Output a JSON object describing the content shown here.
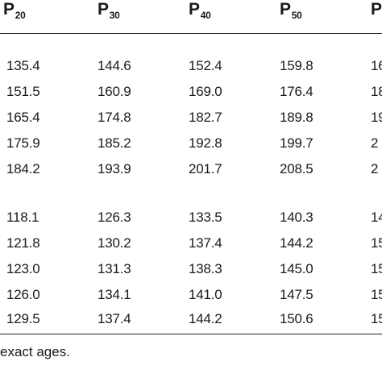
{
  "headers": [
    {
      "letter": "P",
      "sub": "20"
    },
    {
      "letter": "P",
      "sub": "30"
    },
    {
      "letter": "P",
      "sub": "40"
    },
    {
      "letter": "P",
      "sub": "50"
    },
    {
      "letter": "P",
      "sub": ""
    }
  ],
  "group1": [
    [
      "135.4",
      "144.6",
      "152.4",
      "159.8",
      "16"
    ],
    [
      "151.5",
      "160.9",
      "169.0",
      "176.4",
      "18"
    ],
    [
      "165.4",
      "174.8",
      "182.7",
      "189.8",
      "19"
    ],
    [
      "175.9",
      "185.2",
      "192.8",
      "199.7",
      "2"
    ],
    [
      "184.2",
      "193.9",
      "201.7",
      "208.5",
      "2"
    ]
  ],
  "group2": [
    [
      "118.1",
      "126.3",
      "133.5",
      "140.3",
      "14"
    ],
    [
      "121.8",
      "130.2",
      "137.4",
      "144.2",
      "15"
    ],
    [
      "123.0",
      "131.3",
      "138.3",
      "145.0",
      "15"
    ],
    [
      "126.0",
      "134.1",
      "141.0",
      "147.5",
      "15"
    ],
    [
      "129.5",
      "137.4",
      "144.2",
      "150.6",
      "15"
    ]
  ],
  "footnote": "exact ages."
}
